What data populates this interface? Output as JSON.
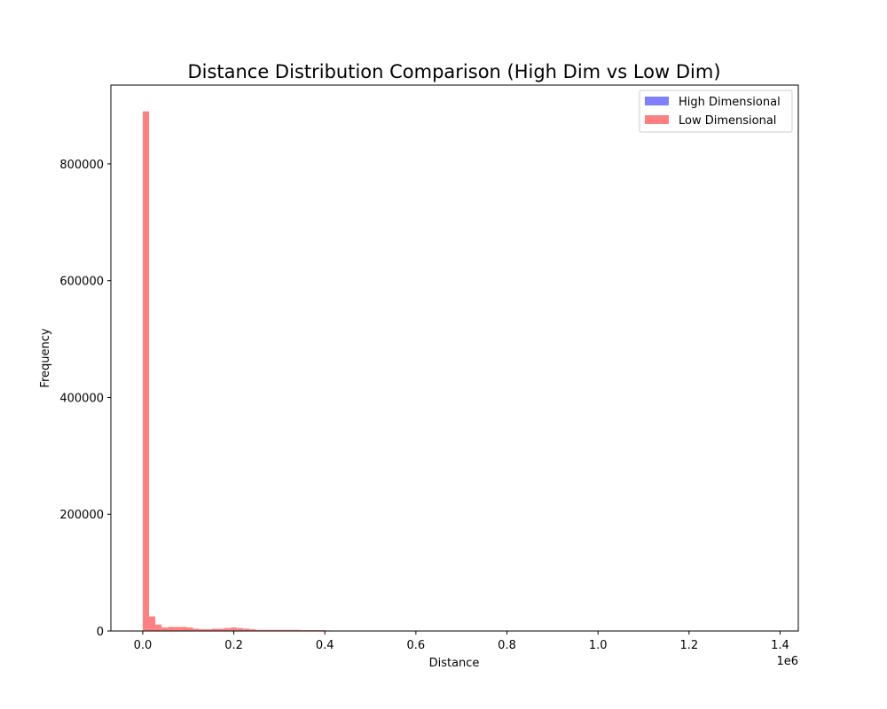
{
  "chart_data": {
    "type": "bar",
    "title": "Distance Distribution Comparison (High Dim vs Low Dim)",
    "xlabel": "Distance",
    "ylabel": "Frequency",
    "x_offset_text": "1e6",
    "xlim": [
      -0.07,
      1.44
    ],
    "ylim": [
      0,
      935000
    ],
    "x_ticks": [
      0.0,
      0.2,
      0.4,
      0.6,
      0.8,
      1.0,
      1.2,
      1.4
    ],
    "x_tick_labels": [
      "0.0",
      "0.2",
      "0.4",
      "0.6",
      "0.8",
      "1.0",
      "1.2",
      "1.4"
    ],
    "y_ticks": [
      0,
      200000,
      400000,
      600000,
      800000
    ],
    "y_tick_labels": [
      "0",
      "200000",
      "400000",
      "600000",
      "800000"
    ],
    "legend": {
      "placement": "top-right",
      "entries": [
        {
          "label": "High Dimensional",
          "color": "#8080ff"
        },
        {
          "label": "Low Dimensional",
          "color": "#ff8080"
        }
      ]
    },
    "bin_width": 0.0138,
    "series": [
      {
        "name": "High Dimensional",
        "color": "#8080ff",
        "bin_starts": [
          0.0
        ],
        "values": [
          0
        ]
      },
      {
        "name": "Low Dimensional",
        "color": "#ff8080",
        "bin_starts": [
          0.0,
          0.0138,
          0.0276,
          0.0414,
          0.0552,
          0.069,
          0.0828,
          0.0966,
          0.1104,
          0.1242,
          0.138,
          0.1518,
          0.1656,
          0.1794,
          0.1932,
          0.207,
          0.2208,
          0.2346,
          0.2484,
          0.2622,
          0.276,
          0.2898,
          0.3036,
          0.3174,
          0.3312,
          0.345,
          0.3588,
          0.3726,
          0.3864,
          0.4002
        ],
        "values": [
          890000,
          25000,
          11000,
          6000,
          7000,
          7000,
          7000,
          6000,
          4000,
          3000,
          3000,
          4000,
          4000,
          5000,
          6000,
          5000,
          4000,
          3000,
          2000,
          2000,
          2000,
          2000,
          2000,
          2000,
          2000,
          1500,
          1500,
          1500,
          1500,
          1000
        ]
      }
    ]
  }
}
